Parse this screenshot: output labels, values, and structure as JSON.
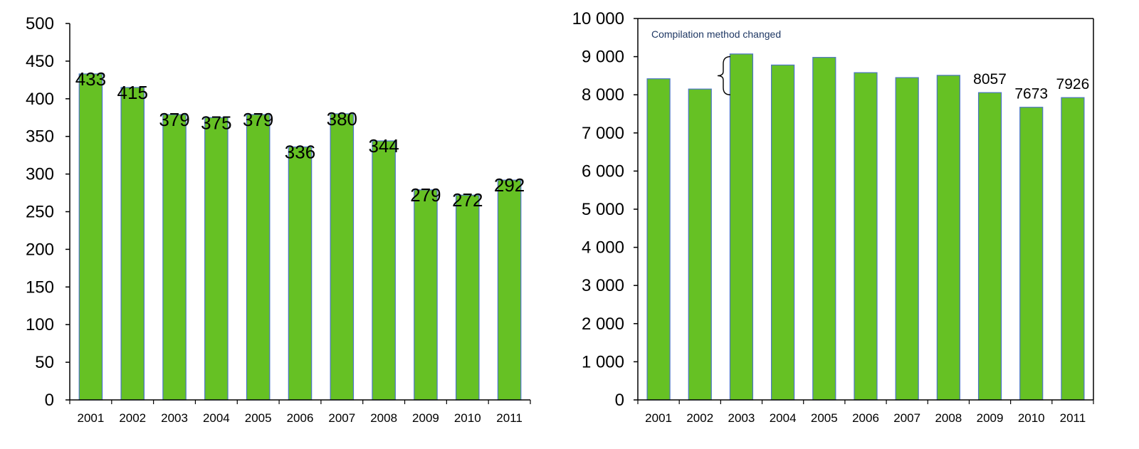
{
  "colors": {
    "bar_fill": "#66C124",
    "bar_stroke": "#4A74C4",
    "axis": "#000000",
    "text": "#000000",
    "annotation_text": "#1F3864"
  },
  "chart_data": [
    {
      "type": "bar",
      "categories": [
        "2001",
        "2002",
        "2003",
        "2004",
        "2005",
        "2006",
        "2007",
        "2008",
        "2009",
        "2010",
        "2011"
      ],
      "values": [
        433,
        415,
        379,
        375,
        379,
        336,
        380,
        344,
        279,
        272,
        292
      ],
      "data_labels": [
        "433",
        "415",
        "379",
        "375",
        "379",
        "336",
        "380",
        "344",
        "279",
        "272",
        "292"
      ],
      "ylim": [
        0,
        500
      ],
      "yticks": [
        0,
        50,
        100,
        150,
        200,
        250,
        300,
        350,
        400,
        450,
        500
      ],
      "ytick_labels": [
        "0",
        "50",
        "100",
        "150",
        "200",
        "250",
        "300",
        "350",
        "400",
        "450",
        "500"
      ],
      "title": "",
      "xlabel": "",
      "ylabel": "",
      "grid": false,
      "legend": "none"
    },
    {
      "type": "bar",
      "categories": [
        "2001",
        "2002",
        "2003",
        "2004",
        "2005",
        "2006",
        "2007",
        "2008",
        "2009",
        "2010",
        "2011"
      ],
      "values": [
        8420,
        8150,
        9070,
        8780,
        8980,
        8580,
        8450,
        8510,
        8057,
        7673,
        7926
      ],
      "data_labels": [
        "",
        "",
        "",
        "",
        "",
        "",
        "",
        "",
        "8057",
        "7673",
        "7926"
      ],
      "ylim": [
        0,
        10000
      ],
      "yticks": [
        0,
        1000,
        2000,
        3000,
        4000,
        5000,
        6000,
        7000,
        8000,
        9000,
        10000
      ],
      "ytick_labels": [
        "0",
        "1 000",
        "2 000",
        "3 000",
        "4 000",
        "5 000",
        "6 000",
        "7 000",
        "8 000",
        "9 000",
        "10 000"
      ],
      "title": "",
      "xlabel": "",
      "ylabel": "",
      "grid": false,
      "legend": "none",
      "annotations": [
        {
          "text": "Compilation method changed",
          "brace_from": 9000,
          "brace_to": 8000
        }
      ]
    }
  ]
}
